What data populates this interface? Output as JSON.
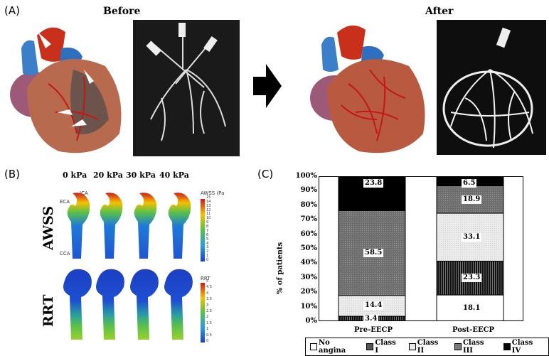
{
  "panels": {
    "a": {
      "label": "(A)",
      "before": "Before",
      "after": "After"
    },
    "b": {
      "label": "(B)",
      "pressures": [
        "0 kPa",
        "20 kPa",
        "30 kPa",
        "40 kPa"
      ],
      "rows": [
        "AWSS",
        "RRT"
      ],
      "vessel_labels": {
        "eca": "ECA",
        "ica": "ICA",
        "cca": "CCA"
      },
      "awss_scale": {
        "title": "AWSS (Pa",
        "ticks": [
          "15",
          "14",
          "13",
          "12",
          "11",
          "10",
          "9",
          "8",
          "7",
          "6",
          "5",
          "4",
          "3",
          "2",
          "1",
          "0"
        ]
      },
      "rrt_scale": {
        "title": "RRT",
        "ticks": [
          "5",
          "4.5",
          "4",
          "3.5",
          "3",
          "2.5",
          "2",
          "1.5",
          "1",
          "0.5",
          "0"
        ]
      }
    },
    "c": {
      "label": "(C)"
    }
  },
  "chart_data": {
    "type": "bar",
    "stacked": true,
    "categories": [
      "Pre-EECP",
      "Post-EECP"
    ],
    "ylabel": "% of patients",
    "ylim": [
      0,
      100
    ],
    "yticks": [
      "0%",
      "10%",
      "20%",
      "30%",
      "40%",
      "50%",
      "60%",
      "70%",
      "80%",
      "90%",
      "100%"
    ],
    "series": [
      {
        "name": "No angina",
        "values": [
          0,
          18.1
        ],
        "color": "#ffffff"
      },
      {
        "name": "Class I",
        "values": [
          3.4,
          23.3
        ],
        "color": "#555555"
      },
      {
        "name": "Class II",
        "values": [
          14.4,
          33.1
        ],
        "color": "#e8e8e8"
      },
      {
        "name": "Class III",
        "values": [
          58.5,
          18.9
        ],
        "color": "#7a7a7a"
      },
      {
        "name": "Class IV",
        "values": [
          23.8,
          6.5
        ],
        "color": "#000000"
      }
    ],
    "data_labels": [
      [
        "",
        "3.4",
        "14.4",
        "58.5",
        "23.8"
      ],
      [
        "18.1",
        "23.3",
        "33.1",
        "18.9",
        "6.5"
      ]
    ]
  }
}
